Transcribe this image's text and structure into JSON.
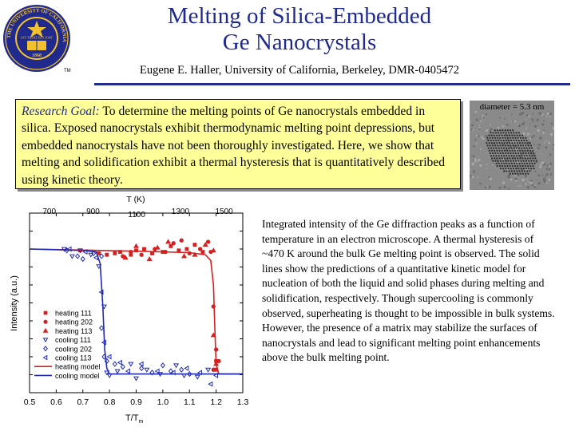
{
  "header": {
    "title_line1": "Melting of Silica-Embedded",
    "title_line2": "Ge Nanocrystals",
    "subtitle": "Eugene E. Haller, University of California, Berkeley, DMR-0405472",
    "trademark": "TM",
    "title_color": "#1f2a8c"
  },
  "logo": {
    "icon": "university-seal-icon",
    "ring_text": "THE UNIVERSITY OF CALIFORNIA",
    "motto": "LET THERE BE LIGHT",
    "year": "1868"
  },
  "goal": {
    "lead": "Research Goal:",
    "text": " To determine the melting points of Ge nanocrystals embedded in silica.  Exposed nanocrystals exhibit thermodynamic melting point depressions, but embedded nanocrystals have not been thoroughly investigated.  Here, we show that melting and solidification exhibit a thermal hysteresis that is quantitatively described using kinetic theory.",
    "background": "#ffff99"
  },
  "micrograph": {
    "label": "diameter = 5.3 nm"
  },
  "description": {
    "text": "Integrated intensity of the Ge diffraction peaks as a function of temperature in an electron microscope.  A thermal hysteresis of ~470 K around the bulk Ge melting point is observed.  The solid lines show the predictions of a quantitative kinetic model for nucleation of both the liquid and solid phases during melting and solidification, respectively.  Though supercooling is commonly observed, superheating is thought to be impossible in bulk systems.  However, the presence of a matrix may stabilize the surfaces of nanocrystals and lead to significant melting point enhancements above the bulk melting point."
  },
  "chart_data": {
    "type": "scatter",
    "xlabel": "T/T",
    "xlabel_sub": "m",
    "ylabel": "Intensity (a.u.)",
    "top_axis_label": "T (K)",
    "xlim": [
      0.5,
      1.3
    ],
    "ylim": [
      0,
      1.25
    ],
    "x_ticks": [
      "0.5",
      "0.6",
      "0.7",
      "0.8",
      "0.9",
      "1.0",
      "1.1",
      "1.2",
      "1.3"
    ],
    "top_ticks": [
      {
        "label": "700",
        "x": 0.574
      },
      {
        "label": "900",
        "x": 0.738
      },
      {
        "label": "1100",
        "x": 0.902
      },
      {
        "label": "1300",
        "x": 1.066
      },
      {
        "label": "1500",
        "x": 1.23
      }
    ],
    "legend_position": "lower-left",
    "series": [
      {
        "name": "heating 111",
        "marker": "square",
        "color": "#d42020",
        "points": [
          [
            0.69,
            0.99
          ],
          [
            0.76,
            0.97
          ],
          [
            0.79,
            0.96
          ],
          [
            0.82,
            0.97
          ],
          [
            0.84,
            0.98
          ],
          [
            0.88,
            0.96
          ],
          [
            0.9,
            0.99
          ],
          [
            0.93,
            1.0
          ],
          [
            0.96,
            0.97
          ],
          [
            1.0,
            0.98
          ],
          [
            1.03,
            1.02
          ],
          [
            1.06,
            0.99
          ],
          [
            1.09,
            1.0
          ],
          [
            1.12,
            1.03
          ],
          [
            1.15,
            0.98
          ],
          [
            1.2,
            0.22
          ],
          [
            1.2,
            0.16
          ]
        ]
      },
      {
        "name": "heating 202",
        "marker": "circle",
        "color": "#d42020",
        "points": [
          [
            0.85,
            0.95
          ],
          [
            0.88,
            0.98
          ],
          [
            0.92,
            0.96
          ],
          [
            0.97,
            1.0
          ],
          [
            1.01,
            0.98
          ],
          [
            1.04,
            1.04
          ],
          [
            1.07,
            1.06
          ],
          [
            1.1,
            0.97
          ],
          [
            1.14,
            1.0
          ],
          [
            1.17,
            1.05
          ],
          [
            1.18,
            0.98
          ],
          [
            1.19,
            0.6
          ],
          [
            1.2,
            0.3
          ],
          [
            1.21,
            0.22
          ],
          [
            1.19,
            0.16
          ]
        ]
      },
      {
        "name": "heating 113",
        "marker": "triangle-up",
        "color": "#d42020",
        "points": [
          [
            0.86,
            0.94
          ],
          [
            0.9,
            1.02
          ],
          [
            0.95,
            0.93
          ],
          [
            0.98,
            1.01
          ],
          [
            1.02,
            1.05
          ],
          [
            1.08,
            0.95
          ],
          [
            1.12,
            0.96
          ],
          [
            1.16,
            1.03
          ],
          [
            1.19,
            0.99
          ],
          [
            1.19,
            0.4
          ],
          [
            1.2,
            0.2
          ]
        ]
      },
      {
        "name": "cooling 111",
        "marker": "triangle-down",
        "color": "#1f2ab0",
        "points": [
          [
            0.63,
            1.0
          ],
          [
            0.66,
            0.95
          ],
          [
            0.69,
            0.99
          ],
          [
            0.73,
            0.96
          ],
          [
            0.76,
            0.88
          ],
          [
            0.78,
            0.6
          ],
          [
            0.79,
            0.14
          ],
          [
            0.8,
            0.12
          ],
          [
            0.83,
            0.15
          ],
          [
            0.88,
            0.2
          ],
          [
            0.9,
            0.1
          ],
          [
            0.94,
            0.16
          ],
          [
            0.99,
            0.13
          ],
          [
            1.05,
            0.19
          ],
          [
            1.08,
            0.12
          ],
          [
            1.13,
            0.11
          ],
          [
            1.17,
            0.16
          ]
        ]
      },
      {
        "name": "cooling 202",
        "marker": "diamond",
        "color": "#1f2ab0",
        "points": [
          [
            0.64,
            0.99
          ],
          [
            0.68,
            0.95
          ],
          [
            0.7,
            0.93
          ],
          [
            0.74,
            0.97
          ],
          [
            0.77,
            0.95
          ],
          [
            0.77,
            0.45
          ],
          [
            0.78,
            0.25
          ],
          [
            0.79,
            0.22
          ],
          [
            0.82,
            0.2
          ],
          [
            0.85,
            0.18
          ],
          [
            0.92,
            0.17
          ],
          [
            0.96,
            0.14
          ],
          [
            1.0,
            0.19
          ],
          [
            1.03,
            0.15
          ],
          [
            1.07,
            0.16
          ],
          [
            1.1,
            0.13
          ]
        ]
      },
      {
        "name": "cooling 113",
        "marker": "triangle-left",
        "color": "#1f2ab0",
        "points": [
          [
            0.65,
            1.0
          ],
          [
            0.71,
            0.98
          ],
          [
            0.75,
            0.94
          ],
          [
            0.77,
            0.7
          ],
          [
            0.78,
            0.35
          ],
          [
            0.8,
            0.25
          ],
          [
            0.84,
            0.21
          ],
          [
            0.87,
            0.15
          ],
          [
            0.92,
            0.2
          ],
          [
            0.98,
            0.15
          ],
          [
            1.04,
            0.14
          ],
          [
            1.09,
            0.17
          ],
          [
            1.14,
            0.14
          ],
          [
            1.18,
            0.06
          ],
          [
            1.2,
            0.12
          ]
        ]
      }
    ],
    "lines": [
      {
        "name": "heating model",
        "color": "#d42020",
        "points": [
          [
            0.5,
            1.0
          ],
          [
            0.9,
            0.985
          ],
          [
            1.1,
            0.975
          ],
          [
            1.16,
            0.96
          ],
          [
            1.18,
            0.92
          ],
          [
            1.19,
            0.75
          ],
          [
            1.195,
            0.45
          ],
          [
            1.2,
            0.2
          ],
          [
            1.21,
            0.13
          ],
          [
            1.3,
            0.13
          ]
        ]
      },
      {
        "name": "cooling model",
        "color": "#1f2ab0",
        "points": [
          [
            0.5,
            1.0
          ],
          [
            0.7,
            0.99
          ],
          [
            0.75,
            0.98
          ],
          [
            0.765,
            0.9
          ],
          [
            0.775,
            0.6
          ],
          [
            0.782,
            0.3
          ],
          [
            0.79,
            0.17
          ],
          [
            0.8,
            0.13
          ],
          [
            1.3,
            0.13
          ]
        ]
      }
    ]
  }
}
